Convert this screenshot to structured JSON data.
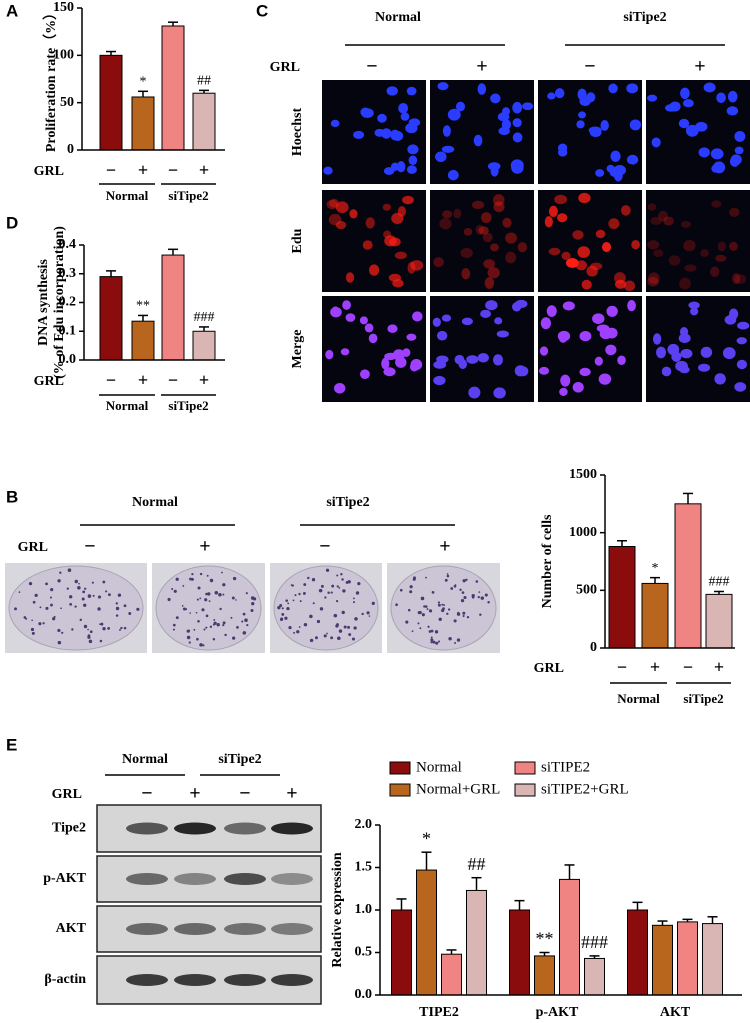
{
  "chart_data": [
    {
      "type": "bar",
      "panel": "A",
      "ylabel": [
        "Proliferation rate（%）"
      ],
      "row_label": "GRL",
      "categories": [
        "−",
        "+",
        "−",
        "+"
      ],
      "groups": [
        "Normal",
        "siTipe2"
      ],
      "values": [
        100,
        56,
        131,
        60
      ],
      "errors": [
        4,
        6,
        4,
        3
      ],
      "annotations": [
        null,
        "*",
        null,
        "##"
      ],
      "colors": [
        "#8b0c0c",
        "#b8651e",
        "#ef8482",
        "#d9b6b4"
      ],
      "ylim": [
        0,
        150
      ],
      "yticks": [
        0,
        50,
        100,
        150
      ]
    },
    {
      "type": "bar",
      "panel": "D",
      "ylabel": [
        "DNA synthesis",
        "(% of Edu incorporation)"
      ],
      "row_label": "GRL",
      "categories": [
        "−",
        "+",
        "−",
        "+"
      ],
      "groups": [
        "Normal",
        "siTipe2"
      ],
      "values": [
        0.29,
        0.135,
        0.365,
        0.1
      ],
      "errors": [
        0.02,
        0.02,
        0.02,
        0.015
      ],
      "annotations": [
        null,
        "**",
        null,
        "###"
      ],
      "colors": [
        "#8b0c0c",
        "#b8651e",
        "#ef8482",
        "#d9b6b4"
      ],
      "ylim": [
        0,
        0.4
      ],
      "yticks": [
        {
          "value": 0,
          "label": "0.0"
        },
        0.1,
        0.2,
        0.3,
        0.4
      ]
    },
    {
      "type": "bar",
      "panel": "B",
      "ylabel": [
        "Number of cells"
      ],
      "row_label": "GRL",
      "categories": [
        "−",
        "+",
        "−",
        "+"
      ],
      "groups": [
        "Normal",
        "siTipe2"
      ],
      "values": [
        880,
        560,
        1250,
        465
      ],
      "errors": [
        50,
        50,
        90,
        25
      ],
      "annotations": [
        null,
        "*",
        null,
        "###"
      ],
      "colors": [
        "#8b0c0c",
        "#b8651e",
        "#ef8482",
        "#d9b6b4"
      ],
      "ylim": [
        0,
        1500
      ],
      "yticks": [
        0,
        500,
        1000,
        1500
      ]
    },
    {
      "type": "grouped_bar",
      "panel": "E",
      "ylabel": [
        "Relative expression"
      ],
      "categories": [
        "TIPE2",
        "p-AKT",
        "AKT"
      ],
      "series": [
        {
          "name": "Normal",
          "color": "#8b0c0c",
          "values": [
            1.0,
            1.0,
            1.0
          ],
          "errors": [
            0.13,
            0.11,
            0.09
          ],
          "annotations": [
            null,
            null,
            null
          ]
        },
        {
          "name": "Normal+GRL",
          "color": "#b8651e",
          "values": [
            1.47,
            0.46,
            0.82
          ],
          "errors": [
            0.21,
            0.04,
            0.05
          ],
          "annotations": [
            "*",
            "**",
            null
          ]
        },
        {
          "name": "siTIPE2",
          "color": "#ef8482",
          "values": [
            0.48,
            1.36,
            0.86
          ],
          "errors": [
            0.05,
            0.17,
            0.03
          ],
          "annotations": [
            null,
            null,
            null
          ]
        },
        {
          "name": "siTIPE2+GRL",
          "color": "#d9b6b4",
          "values": [
            1.23,
            0.43,
            0.84
          ],
          "errors": [
            0.15,
            0.03,
            0.08
          ],
          "annotations": [
            "##",
            "###",
            null
          ]
        }
      ],
      "ylim": [
        0,
        2
      ],
      "yticks": [
        {
          "value": 0,
          "label": "0.0"
        },
        {
          "value": 0.5,
          "label": "0.5"
        },
        {
          "value": 1,
          "label": "1.0"
        },
        {
          "value": 1.5,
          "label": "1.5"
        },
        {
          "value": 2,
          "label": "2.0"
        }
      ]
    }
  ],
  "panel_c": {
    "panel": "C",
    "groups": [
      "Normal",
      "siTipe2"
    ],
    "row_label": "GRL",
    "signs": [
      "−",
      "+",
      "−",
      "+"
    ],
    "rows": [
      "Hoechst",
      "Edu",
      "Merge"
    ]
  },
  "panel_b_images": {
    "groups": [
      "Normal",
      "siTipe2"
    ],
    "row_label": "GRL",
    "signs": [
      "−",
      "+",
      "−",
      "+"
    ]
  },
  "panel_e_blot": {
    "groups": [
      "Normal",
      "siTipe2"
    ],
    "row_label": "GRL",
    "signs": [
      "−",
      "+",
      "−",
      "+"
    ],
    "rows": [
      "Tipe2",
      "p-AKT",
      "AKT",
      "β-actin"
    ]
  }
}
